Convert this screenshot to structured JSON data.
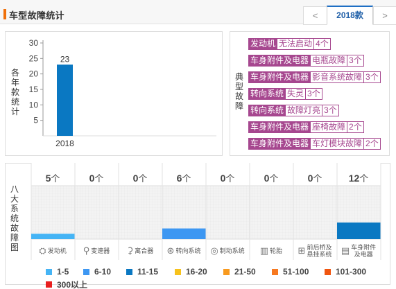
{
  "header": {
    "title": "车型故障统计",
    "prev_label": "<",
    "next_label": ">",
    "year_tab": "2018款"
  },
  "left_panel": {
    "axis_label": "各年款统计"
  },
  "chart_data": {
    "type": "bar",
    "categories": [
      "2018"
    ],
    "values": [
      23
    ],
    "ylim": [
      0,
      30
    ],
    "yticks": [
      5,
      10,
      15,
      20,
      25,
      30
    ],
    "color": "#0a78c2",
    "grid": false
  },
  "right_panel": {
    "axis_label": "典型故障",
    "faults": [
      {
        "category": "发动机",
        "issue": "无法启动",
        "count": "4个"
      },
      {
        "category": "车身附件及电器",
        "issue": "电瓶故障",
        "count": "3个"
      },
      {
        "category": "车身附件及电器",
        "issue": "影音系统故障",
        "count": "3个"
      },
      {
        "category": "转向系统",
        "issue": "失灵",
        "count": "3个"
      },
      {
        "category": "转向系统",
        "issue": "故障灯亮",
        "count": "3个"
      },
      {
        "category": "车身附件及电器",
        "issue": "座椅故障",
        "count": "2个"
      },
      {
        "category": "车身附件及电器",
        "issue": "车灯模块故障",
        "count": "2个"
      }
    ]
  },
  "bottom_panel": {
    "axis_label": "八大系统故障图",
    "unit": "个",
    "systems": [
      {
        "name": "发动机",
        "count": 5,
        "icon": "engine-icon",
        "glyph": "⛭",
        "fill_color": "#45b4f5",
        "level": 0.1
      },
      {
        "name": "变速器",
        "count": 0,
        "icon": "gear-shift-icon",
        "glyph": "⚲",
        "fill_color": "#45b4f5",
        "level": 0
      },
      {
        "name": "离合器",
        "count": 0,
        "icon": "clutch-pedal-icon",
        "glyph": "⚳",
        "fill_color": "#45b4f5",
        "level": 0
      },
      {
        "name": "转向系统",
        "count": 6,
        "icon": "steering-wheel-icon",
        "glyph": "⊛",
        "fill_color": "#3d97f2",
        "level": 0.2
      },
      {
        "name": "制动系统",
        "count": 0,
        "icon": "brake-disc-icon",
        "glyph": "◎",
        "fill_color": "#45b4f5",
        "level": 0
      },
      {
        "name": "轮胎",
        "count": 0,
        "icon": "tire-icon",
        "glyph": "▥",
        "fill_color": "#45b4f5",
        "level": 0
      },
      {
        "name": "前后桥及悬挂系统",
        "name_line1": "前后桥及",
        "name_line2": "悬挂系统",
        "count": 0,
        "icon": "suspension-icon",
        "glyph": "⊞",
        "fill_color": "#45b4f5",
        "level": 0
      },
      {
        "name": "车身附件及电器",
        "name_line1": "车身附件",
        "name_line2": "及电器",
        "count": 12,
        "icon": "car-body-icon",
        "glyph": "▤",
        "fill_color": "#0a78c2",
        "level": 0.31
      }
    ],
    "legend": [
      {
        "label": "1-5",
        "color": "#45b4f5"
      },
      {
        "label": "6-10",
        "color": "#3d97f2"
      },
      {
        "label": "11-15",
        "color": "#0a78c2"
      },
      {
        "label": "16-20",
        "color": "#f7c21c"
      },
      {
        "label": "21-50",
        "color": "#f89a1e"
      },
      {
        "label": "51-100",
        "color": "#f77920"
      },
      {
        "label": "101-300",
        "color": "#f0550f"
      },
      {
        "label": "300以上",
        "color": "#e81e1e"
      }
    ]
  }
}
